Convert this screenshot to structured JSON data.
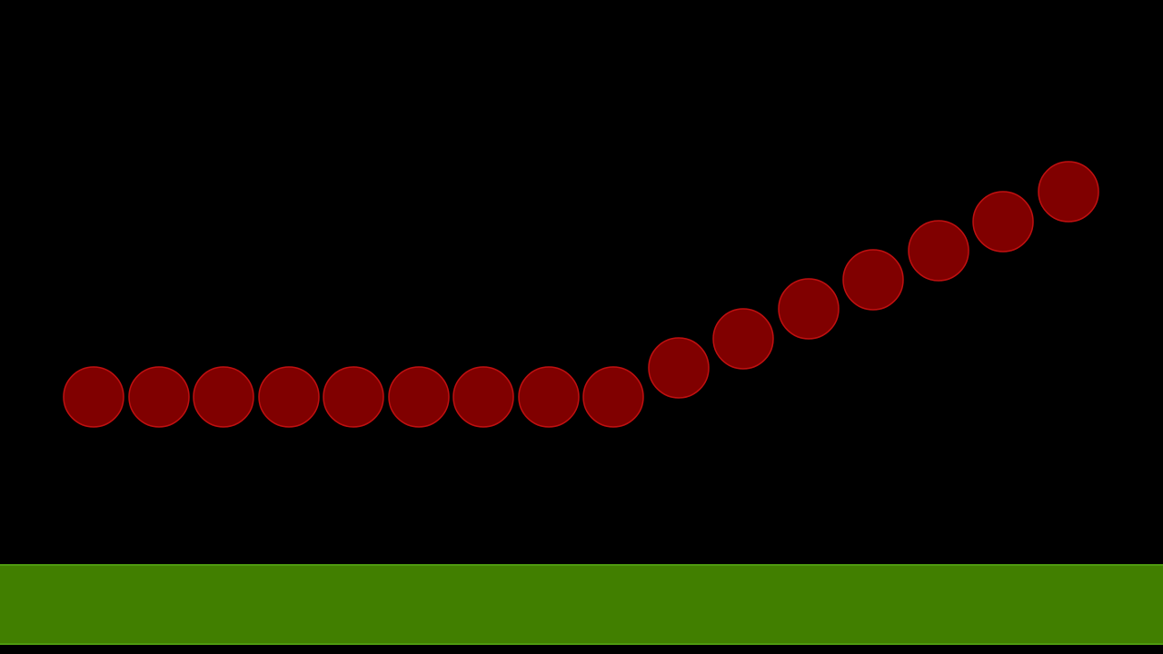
{
  "scene": {
    "background_color": "#000000",
    "ground": {
      "fill_color": "#417f00",
      "edge_color": "#4f9a10"
    },
    "chain": {
      "ball_fill_color": "#800000",
      "ball_edge_color": "#c01010",
      "ball_count": 16
    }
  }
}
